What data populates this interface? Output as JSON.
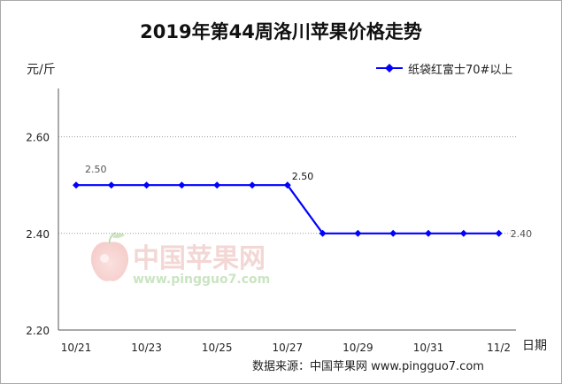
{
  "chart_data": {
    "type": "line",
    "title": "2019年第44周洛川苹果价格走势",
    "ylabel": "元/斤",
    "xlabel": "日期",
    "x": [
      "10/21",
      "10/22",
      "10/23",
      "10/24",
      "10/25",
      "10/26",
      "10/27",
      "10/28",
      "10/29",
      "10/30",
      "10/31",
      "11/1",
      "11/2"
    ],
    "x_tick_labels": [
      "10/21",
      "10/23",
      "10/25",
      "10/27",
      "10/29",
      "10/31",
      "11/2"
    ],
    "y_ticks": [
      "2.20",
      "2.40",
      "2.60"
    ],
    "ylim": [
      2.2,
      2.7
    ],
    "series": [
      {
        "name": "纸袋红富士70#以上",
        "values": [
          2.5,
          2.5,
          2.5,
          2.5,
          2.5,
          2.5,
          2.5,
          2.4,
          2.4,
          2.4,
          2.4,
          2.4,
          2.4
        ],
        "color": "#0000ff"
      }
    ],
    "data_labels": [
      {
        "index": 0,
        "text": "2.50"
      },
      {
        "index": 6,
        "text": "2.50"
      },
      {
        "index": 12,
        "text": "2.40"
      }
    ],
    "grid": "horizontal-dotted",
    "legend_position": "top-right"
  },
  "watermark": {
    "text": "中国苹果网",
    "url": "www.pingguo7.com"
  },
  "source": "数据来源：中国苹果网 www.pingguo7.com"
}
